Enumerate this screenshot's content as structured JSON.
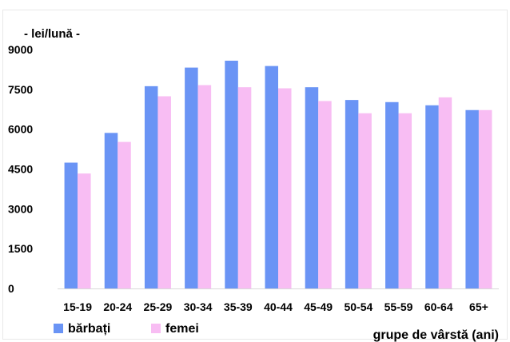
{
  "chart_data": {
    "type": "bar",
    "unit_label": "- lei/lună -",
    "xlabel": "grupe de vârstă (ani)",
    "ylim": [
      0,
      9000
    ],
    "yticks": [
      0,
      1500,
      3000,
      4500,
      6000,
      7500,
      9000
    ],
    "categories": [
      "15-19",
      "20-24",
      "25-29",
      "30-34",
      "35-39",
      "40-44",
      "45-49",
      "50-54",
      "55-59",
      "60-64",
      "65+"
    ],
    "series": [
      {
        "name": "bărbați",
        "color": "#6a94f5",
        "values": [
          4740,
          5860,
          7620,
          8320,
          8580,
          8380,
          7580,
          7100,
          7020,
          6900,
          6720
        ]
      },
      {
        "name": "femei",
        "color": "#f8bdf3",
        "values": [
          4330,
          5520,
          7240,
          7660,
          7580,
          7540,
          7060,
          6600,
          6600,
          7200,
          6720
        ]
      }
    ],
    "grid": false,
    "legend_position": "bottom-left"
  }
}
